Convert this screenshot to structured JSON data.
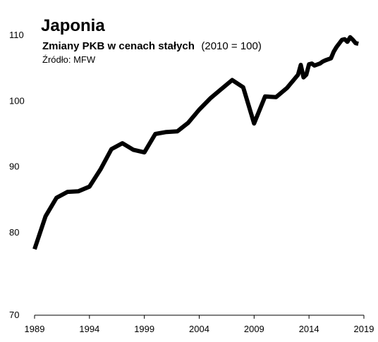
{
  "chart_data": {
    "type": "line",
    "title": "Japonia",
    "subtitle_bold": "Zmiany PKB w cenach stałych",
    "subtitle_normal": "(2010 = 100)",
    "source": "Źródło: MFW",
    "xlabel": "",
    "ylabel": "",
    "xlim": [
      1989,
      2019
    ],
    "ylim": [
      70,
      113
    ],
    "x_ticks": [
      1989,
      1994,
      1999,
      2004,
      2009,
      2014,
      2019
    ],
    "y_ticks": [
      70,
      80,
      90,
      100,
      110
    ],
    "grid": false,
    "line_color": "#000000",
    "series": [
      {
        "x": [
          1989,
          1990,
          1991,
          1992,
          1993,
          1994,
          1995,
          1996,
          1997,
          1998,
          1999,
          2000,
          2001,
          2002,
          2003,
          2004,
          2005,
          2006,
          2007,
          2008,
          2009,
          2010,
          2011,
          2012,
          2013,
          2013.25,
          2013.5,
          2013.75,
          2014,
          2014.25,
          2014.5,
          2015,
          2015.25,
          2015.5,
          2016,
          2016.25,
          2016.5,
          2017,
          2017.25,
          2017.5,
          2017.75,
          2018,
          2018.25,
          2018.5
        ],
        "y": [
          77.5,
          82.5,
          85.3,
          86.2,
          86.3,
          87.0,
          89.6,
          92.7,
          93.6,
          92.6,
          92.2,
          95.0,
          95.3,
          95.4,
          96.7,
          98.7,
          100.4,
          101.8,
          103.2,
          102.1,
          96.6,
          100.7,
          100.6,
          102.0,
          104.0,
          105.5,
          103.6,
          104.0,
          105.6,
          105.7,
          105.4,
          105.7,
          106.0,
          106.2,
          106.5,
          107.5,
          108.2,
          109.3,
          109.4,
          109.0,
          109.7,
          109.3,
          108.8,
          108.7
        ]
      }
    ]
  }
}
